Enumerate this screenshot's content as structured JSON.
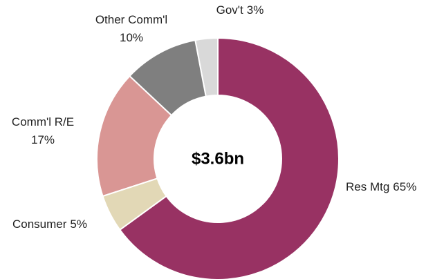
{
  "chart_data": {
    "type": "donut",
    "center_label": "$3.6bn",
    "categories": [
      "Res Mtg",
      "Consumer",
      "Comm'l R/E",
      "Other Comm'l",
      "Gov't"
    ],
    "values": [
      65,
      5,
      17,
      10,
      3
    ],
    "value_labels": [
      "65%",
      "5%",
      "17%",
      "10%",
      "3%"
    ],
    "colors": [
      "#983263",
      "#e2d8b6",
      "#d99694",
      "#7f7f7f",
      "#d9d9d9"
    ]
  }
}
